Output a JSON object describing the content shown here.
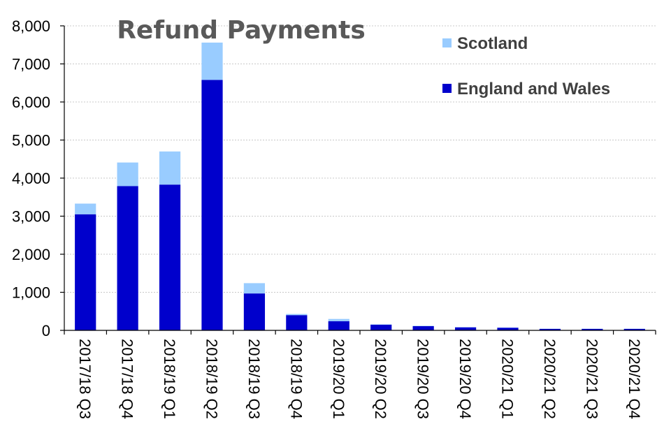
{
  "chart_data": {
    "type": "bar",
    "stacked": true,
    "title": "Refund Payments",
    "categories": [
      "2017/18 Q3",
      "2017/18 Q4",
      "2018/19 Q1",
      "2018/19 Q2",
      "2018/19 Q3",
      "2018/19 Q4",
      "2019/20 Q1",
      "2019/20 Q2",
      "2019/20 Q3",
      "2019/20 Q4",
      "2020/21 Q1",
      "2020/21 Q2",
      "2020/21 Q3",
      "2020/21 Q4"
    ],
    "series": [
      {
        "name": "England and Wales",
        "color": "#0000CC",
        "values": [
          3050,
          3790,
          3830,
          6580,
          970,
          400,
          240,
          150,
          110,
          80,
          70,
          40,
          40,
          40
        ]
      },
      {
        "name": "Scotland",
        "color": "#99CCFF",
        "values": [
          280,
          620,
          870,
          980,
          270,
          30,
          60,
          10,
          10,
          5,
          5,
          5,
          5,
          5
        ]
      }
    ],
    "legend": [
      {
        "name": "Scotland",
        "color": "#99CCFF"
      },
      {
        "name": "England and Wales",
        "color": "#0000CC"
      }
    ],
    "legend_position": "top-right",
    "ylim": [
      0,
      8000
    ],
    "yticks": [
      0,
      1000,
      2000,
      3000,
      4000,
      5000,
      6000,
      7000,
      8000
    ],
    "ytick_labels": [
      "0",
      "1,000",
      "2,000",
      "3,000",
      "4,000",
      "5,000",
      "6,000",
      "7,000",
      "8,000"
    ],
    "grid": true,
    "xlabel": "",
    "ylabel": ""
  }
}
